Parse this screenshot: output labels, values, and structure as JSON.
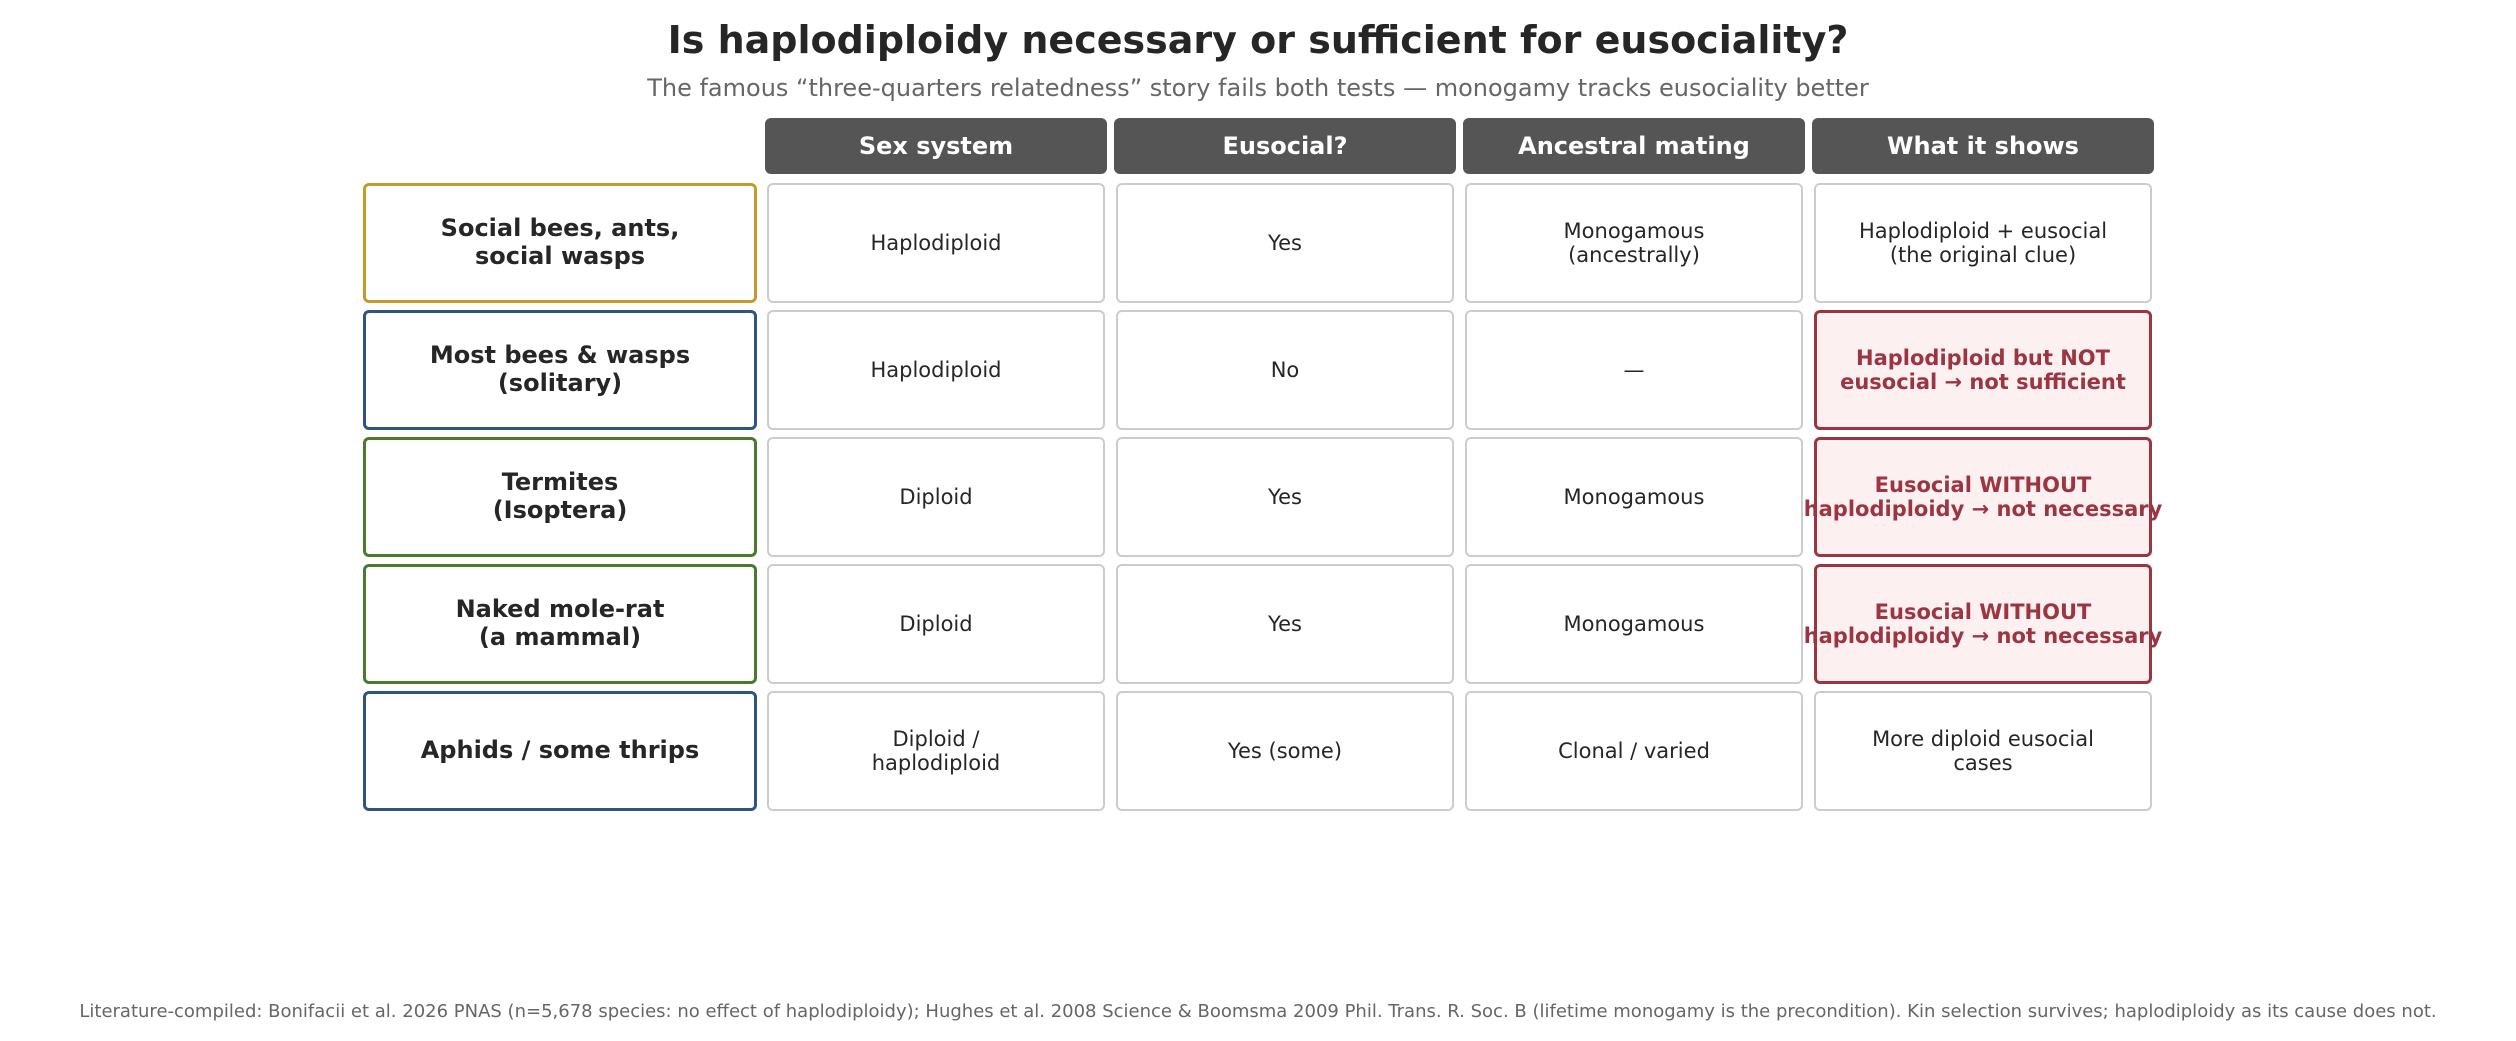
{
  "title": "Is haplodiploidy necessary or sufficient for eusociality?",
  "subtitle": "The famous “three-quarters relatedness” story fails both tests — monogamy tracks eusociality better",
  "columns": [
    "Sex system",
    "Eusocial?",
    "Ancestral mating",
    "What it shows"
  ],
  "rows": [
    {
      "label": "Social bees, ants,\nsocial wasps",
      "label_color": "#c49a2c",
      "sex_system": "Haplodiploid",
      "eusocial": "Yes",
      "mating": "Monogamous\n(ancestrally)",
      "shows": "Haplodiploid + eusocial\n(the original clue)",
      "flagged": false
    },
    {
      "label": "Most bees & wasps\n(solitary)",
      "label_color": "#2e5484",
      "sex_system": "Haplodiploid",
      "eusocial": "No",
      "mating": "—",
      "shows": "Haplodiploid but NOT\neusocial → not sufficient",
      "flagged": true
    },
    {
      "label": "Termites\n(Isoptera)",
      "label_color": "#4a7a2e",
      "sex_system": "Diploid",
      "eusocial": "Yes",
      "mating": "Monogamous",
      "shows": "Eusocial WITHOUT\nhaplodiploidy → not necessary",
      "flagged": true
    },
    {
      "label": "Naked mole-rat\n(a mammal)",
      "label_color": "#4a7a2e",
      "sex_system": "Diploid",
      "eusocial": "Yes",
      "mating": "Monogamous",
      "shows": "Eusocial WITHOUT\nhaplodiploidy → not necessary",
      "flagged": true
    },
    {
      "label": "Aphids / some thrips",
      "label_color": "#2e5484",
      "sex_system": "Diploid /\nhaplodiploid",
      "eusocial": "Yes (some)",
      "mating": "Clonal / varied",
      "shows": "More diploid eusocial\ncases",
      "flagged": false
    }
  ],
  "flag_color": "#9b3542",
  "footnote": "Literature-compiled: Bonifacii et al. 2026 PNAS (n=5,678 species: no effect of haplodiploidy); Hughes et al. 2008 Science & Boomsma 2009 Phil. Trans. R. Soc. B (lifetime monogamy is the precondition). Kin selection survives; haplodiploidy as its cause does not."
}
